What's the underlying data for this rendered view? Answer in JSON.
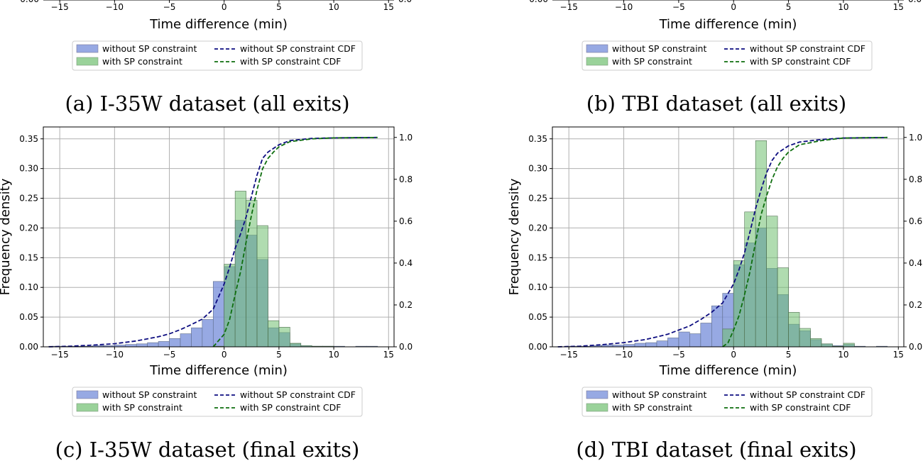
{
  "captions": {
    "a": "(a) I-35W dataset (all exits)",
    "b": "(b) TBI dataset (all exits)",
    "c": "(c) I-35W dataset (final exits)",
    "d": "(d) TBI dataset (final exits)"
  },
  "colors": {
    "without_bar": "#7d93dc",
    "with_bar": "#6fbf6f",
    "without_cdf": "#0d0d80",
    "with_cdf": "#0e6e0e",
    "grid": "#b0b0b0"
  },
  "legend": {
    "without_bar": "without SP constraint",
    "with_bar": "with SP constraint",
    "without_cdf": "without SP constraint CDF",
    "with_cdf": "with SP constraint CDF"
  },
  "chart_data": [
    {
      "id": "a",
      "type": "bar",
      "partial": true,
      "xlabel": "Time difference (min)",
      "xlim": [
        -16.5,
        15.5
      ],
      "x_ticks": [
        -15,
        -10,
        -5,
        0,
        5,
        10,
        15
      ],
      "x_tick_labels": [
        "−15",
        "−10",
        "−5",
        "0",
        "5",
        "10",
        "15"
      ],
      "y_tick_labels_visible": [
        "0.00"
      ],
      "y2_tick_labels_visible": [
        "0.0"
      ]
    },
    {
      "id": "b",
      "type": "bar",
      "partial": true,
      "xlabel": "Time difference (min)",
      "xlim": [
        -16.5,
        15.5
      ],
      "x_ticks": [
        -15,
        -10,
        -5,
        0,
        5,
        10,
        15
      ],
      "x_tick_labels": [
        "−15",
        "−10",
        "−5",
        "0",
        "5",
        "10",
        "15"
      ],
      "y_tick_labels_visible": [
        "0.00"
      ],
      "y2_tick_labels_visible": [
        "0.0"
      ]
    },
    {
      "id": "c",
      "type": "bar",
      "xlabel": "Time difference (min)",
      "ylabel": "Frequency density",
      "xlim": [
        -16.5,
        15.5
      ],
      "ylim": [
        0,
        0.37
      ],
      "y2lim": [
        0,
        1.05
      ],
      "grid": true,
      "legend_position": "below",
      "x_ticks": [
        -15,
        -10,
        -5,
        0,
        5,
        10,
        15
      ],
      "x_tick_labels": [
        "−15",
        "−10",
        "−5",
        "0",
        "5",
        "10",
        "15"
      ],
      "y_ticks": [
        0,
        0.05,
        0.1,
        0.15,
        0.2,
        0.25,
        0.3,
        0.35
      ],
      "y_tick_labels": [
        "0.00",
        "0.05",
        "0.10",
        "0.15",
        "0.20",
        "0.25",
        "0.30",
        "0.35"
      ],
      "y2_ticks": [
        0,
        0.2,
        0.4,
        0.6,
        0.8,
        1.0
      ],
      "y2_tick_labels": [
        "0.0",
        "0.2",
        "0.4",
        "0.6",
        "0.8",
        "1.0"
      ],
      "bin_edges": [
        -16,
        -15,
        -14,
        -13,
        -12,
        -11,
        -10,
        -9,
        -8,
        -7,
        -6,
        -5,
        -4,
        -3,
        -2,
        -1,
        0,
        1,
        2,
        3,
        4,
        5,
        6,
        7,
        8,
        9,
        10,
        11,
        12,
        13,
        14
      ],
      "series": [
        {
          "name": "without SP constraint",
          "kind": "hist",
          "values": [
            0.001,
            0.001,
            0.001,
            0.001,
            0.002,
            0.002,
            0.003,
            0.004,
            0.005,
            0.007,
            0.009,
            0.014,
            0.022,
            0.032,
            0.046,
            0.11,
            0.135,
            0.213,
            0.188,
            0.147,
            0.032,
            0.024,
            0.005,
            0.002,
            0.001,
            0.001,
            0.001,
            0,
            0.001,
            0.001
          ]
        },
        {
          "name": "with SP constraint",
          "kind": "hist",
          "values": [
            0,
            0,
            0,
            0,
            0,
            0,
            0,
            0,
            0,
            0,
            0,
            0,
            0,
            0,
            0,
            0.001,
            0.139,
            0.262,
            0.247,
            0.204,
            0.044,
            0.033,
            0.006,
            0.002,
            0.001,
            0.001,
            0,
            0,
            0,
            0
          ]
        },
        {
          "name": "without SP constraint CDF",
          "kind": "cdf",
          "x": [
            -16,
            -14,
            -12,
            -10,
            -8,
            -6,
            -5,
            -4,
            -3,
            -2,
            -1,
            0,
            0.5,
            1,
            1.5,
            2,
            2.5,
            3,
            3.5,
            4,
            5,
            6,
            8,
            10,
            14
          ],
          "values": [
            0,
            0.003,
            0.008,
            0.015,
            0.028,
            0.048,
            0.062,
            0.082,
            0.106,
            0.132,
            0.18,
            0.3,
            0.38,
            0.47,
            0.54,
            0.62,
            0.72,
            0.82,
            0.9,
            0.93,
            0.965,
            0.985,
            0.995,
            0.998,
            1.0
          ]
        },
        {
          "name": "with SP constraint CDF",
          "kind": "cdf",
          "x": [
            -1,
            0,
            0.5,
            1,
            1.5,
            2,
            2.5,
            3,
            3.5,
            4,
            4.5,
            5,
            6,
            8,
            10,
            14
          ],
          "values": [
            0,
            0.06,
            0.13,
            0.25,
            0.36,
            0.5,
            0.63,
            0.75,
            0.85,
            0.9,
            0.93,
            0.955,
            0.98,
            0.993,
            0.998,
            1.0
          ]
        }
      ]
    },
    {
      "id": "d",
      "type": "bar",
      "xlabel": "Time difference (min)",
      "ylabel": "Frequency density",
      "xlim": [
        -16.5,
        15.5
      ],
      "ylim": [
        0,
        0.37
      ],
      "y2lim": [
        0,
        1.05
      ],
      "grid": true,
      "legend_position": "below",
      "x_ticks": [
        -15,
        -10,
        -5,
        0,
        5,
        10,
        15
      ],
      "x_tick_labels": [
        "−15",
        "−10",
        "−5",
        "0",
        "5",
        "10",
        "15"
      ],
      "y_ticks": [
        0,
        0.05,
        0.1,
        0.15,
        0.2,
        0.25,
        0.3,
        0.35
      ],
      "y_tick_labels": [
        "0.00",
        "0.05",
        "0.10",
        "0.15",
        "0.20",
        "0.25",
        "0.30",
        "0.35"
      ],
      "y2_ticks": [
        0,
        0.2,
        0.4,
        0.6,
        0.8,
        1.0
      ],
      "y2_tick_labels": [
        "0.0",
        "0.2",
        "0.4",
        "0.6",
        "0.8",
        "1.0"
      ],
      "bin_edges": [
        -16,
        -15,
        -14,
        -13,
        -12,
        -11,
        -10,
        -9,
        -8,
        -7,
        -6,
        -5,
        -4,
        -3,
        -2,
        -1,
        0,
        1,
        2,
        3,
        4,
        5,
        6,
        7,
        8,
        9,
        10,
        11,
        12,
        13,
        14
      ],
      "series": [
        {
          "name": "without SP constraint",
          "kind": "hist",
          "values": [
            0,
            0.001,
            0.001,
            0.002,
            0.003,
            0.003,
            0.004,
            0.006,
            0.007,
            0.01,
            0.015,
            0.025,
            0.022,
            0.04,
            0.069,
            0.09,
            0.138,
            0.175,
            0.2,
            0.132,
            0.088,
            0.038,
            0.027,
            0.012,
            0.005,
            0.002,
            0.004,
            0.001,
            0,
            0.001
          ]
        },
        {
          "name": "with SP constraint",
          "kind": "hist",
          "values": [
            0,
            0,
            0,
            0,
            0,
            0,
            0,
            0,
            0,
            0,
            0,
            0,
            0,
            0,
            0,
            0.03,
            0.145,
            0.227,
            0.347,
            0.22,
            0.133,
            0.058,
            0.031,
            0.014,
            0.005,
            0.001,
            0.006,
            0,
            0,
            0
          ]
        },
        {
          "name": "without SP constraint CDF",
          "kind": "cdf",
          "x": [
            -16,
            -14,
            -12,
            -10,
            -8,
            -6,
            -5,
            -4,
            -3,
            -2,
            -1,
            0,
            0.5,
            1,
            1.5,
            2,
            2.5,
            3,
            3.5,
            4,
            5,
            6,
            8,
            10,
            14
          ],
          "values": [
            0,
            0.003,
            0.01,
            0.02,
            0.035,
            0.06,
            0.08,
            0.1,
            0.13,
            0.165,
            0.21,
            0.3,
            0.37,
            0.45,
            0.55,
            0.66,
            0.75,
            0.83,
            0.89,
            0.925,
            0.96,
            0.978,
            0.99,
            0.997,
            1.0
          ]
        },
        {
          "name": "with SP constraint CDF",
          "kind": "cdf",
          "x": [
            -1,
            -0.5,
            0,
            0.5,
            1,
            1.5,
            2,
            2.5,
            3,
            3.5,
            4,
            4.5,
            5,
            6,
            8,
            10,
            14
          ],
          "values": [
            0,
            0.02,
            0.08,
            0.15,
            0.25,
            0.36,
            0.5,
            0.63,
            0.72,
            0.8,
            0.86,
            0.9,
            0.93,
            0.965,
            0.985,
            0.997,
            1.0
          ]
        }
      ]
    }
  ]
}
